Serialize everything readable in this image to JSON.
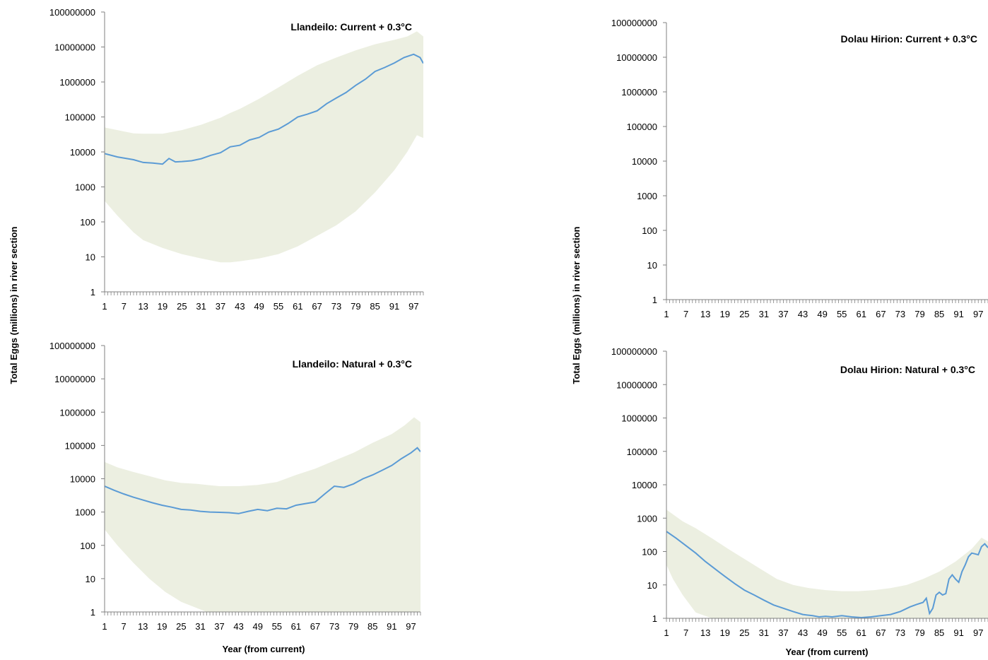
{
  "shared": {
    "ylabel": "Total Eggs (millions) in river section",
    "xlabel": "Year (from current)",
    "x_tick_labels": [
      "1",
      "7",
      "13",
      "19",
      "25",
      "31",
      "37",
      "43",
      "49",
      "55",
      "61",
      "67",
      "73",
      "79",
      "85",
      "91",
      "97"
    ],
    "y_tick_labels": [
      "1",
      "10",
      "100",
      "1000",
      "10000",
      "100000",
      "1000000",
      "10000000",
      "100000000"
    ],
    "colors": {
      "band": "#ECEFE1",
      "line": "#5B9BD5",
      "axis": "#808080"
    }
  },
  "chart_data": [
    {
      "type": "area",
      "title": "Llandeilo: Current + 0.3°C",
      "yscale": "log",
      "ylim": [
        1,
        100000000
      ],
      "xlim": [
        1,
        100
      ],
      "series": [
        {
          "kind": "band",
          "x": [
            1,
            5,
            10,
            13,
            19,
            25,
            31,
            37,
            40,
            43,
            49,
            55,
            61,
            67,
            73,
            79,
            85,
            91,
            95,
            98,
            100
          ],
          "lower": [
            400,
            150,
            50,
            30,
            18,
            12,
            9,
            7,
            7,
            7.5,
            9,
            12,
            20,
            40,
            80,
            200,
            700,
            3000,
            10000,
            30000,
            25000
          ],
          "upper": [
            50000,
            42000,
            34000,
            33000,
            33000,
            42000,
            60000,
            95000,
            130000,
            170000,
            330000,
            700000,
            1500000,
            3000000,
            5000000,
            8000000,
            12000000,
            16000000,
            20000000,
            28000000,
            20000000
          ]
        },
        {
          "kind": "line",
          "x": [
            1,
            5,
            10,
            13,
            16,
            19,
            21,
            23,
            25,
            28,
            31,
            34,
            37,
            40,
            43,
            46,
            49,
            52,
            55,
            58,
            61,
            64,
            67,
            70,
            73,
            76,
            79,
            82,
            85,
            88,
            91,
            94,
            97,
            99,
            100
          ],
          "y": [
            9000,
            7200,
            6000,
            5000,
            4800,
            4500,
            6500,
            5200,
            5300,
            5600,
            6400,
            8000,
            9500,
            14000,
            15500,
            22000,
            26000,
            37000,
            45000,
            65000,
            100000,
            120000,
            150000,
            240000,
            350000,
            500000,
            800000,
            1200000,
            2000000,
            2600000,
            3500000,
            5000000,
            6200000,
            5000000,
            3400000
          ]
        }
      ]
    },
    {
      "type": "area",
      "title": "Llandeilo: Natural + 0.3°C",
      "yscale": "log",
      "ylim": [
        1,
        100000000
      ],
      "xlim": [
        1,
        100
      ],
      "series": [
        {
          "kind": "band",
          "x": [
            1,
            5,
            10,
            15,
            20,
            25,
            30,
            33,
            37,
            43,
            49,
            55,
            61,
            67,
            73,
            79,
            85,
            91,
            95,
            98,
            100
          ],
          "lower": [
            300,
            100,
            30,
            10,
            4,
            2,
            1.3,
            0.8,
            0.4,
            0.15,
            0.06,
            0.03,
            0.015,
            0.008,
            0.004,
            0.002,
            0.001,
            0.0005,
            0.0003,
            0.0002,
            0.0002
          ],
          "upper": [
            32000,
            22000,
            16000,
            12000,
            9000,
            7500,
            7000,
            6500,
            6000,
            6000,
            6500,
            8000,
            13000,
            20000,
            35000,
            60000,
            120000,
            220000,
            400000,
            700000,
            500000
          ]
        },
        {
          "kind": "line",
          "x": [
            1,
            4,
            7,
            10,
            13,
            16,
            19,
            22,
            25,
            28,
            31,
            34,
            37,
            40,
            43,
            46,
            49,
            52,
            55,
            58,
            61,
            64,
            67,
            70,
            73,
            76,
            79,
            82,
            85,
            88,
            91,
            94,
            97,
            99,
            100
          ],
          "y": [
            6000,
            4500,
            3500,
            2800,
            2300,
            1900,
            1600,
            1400,
            1200,
            1150,
            1050,
            1000,
            980,
            960,
            900,
            1050,
            1200,
            1100,
            1300,
            1250,
            1600,
            1800,
            2000,
            3500,
            6000,
            5500,
            7000,
            10000,
            13000,
            18000,
            25000,
            40000,
            60000,
            85000,
            65000
          ]
        }
      ]
    },
    {
      "type": "area",
      "title": "Dolau Hirion: Current + 0.3°C",
      "yscale": "log",
      "ylim": [
        1,
        100000000
      ],
      "xlim": [
        1,
        100
      ],
      "series": []
    },
    {
      "type": "area",
      "title": "Dolau Hirion: Natural + 0.3°C",
      "yscale": "log",
      "ylim": [
        1,
        100000000
      ],
      "xlim": [
        1,
        100
      ],
      "series": [
        {
          "kind": "band",
          "x": [
            1,
            3,
            6,
            10,
            15,
            20,
            25,
            30,
            35,
            40,
            45,
            50,
            55,
            60,
            65,
            70,
            75,
            80,
            85,
            90,
            95,
            98,
            100
          ],
          "lower": [
            40,
            15,
            5,
            1.5,
            0.4,
            0.15,
            0.05,
            0.02,
            0.01,
            0.005,
            0.003,
            0.002,
            0.0015,
            0.001,
            0.001,
            0.001,
            0.001,
            0.001,
            0.001,
            0.001,
            0.001,
            0.001,
            0.001
          ],
          "upper": [
            1800,
            1300,
            800,
            500,
            250,
            120,
            60,
            30,
            15,
            10,
            8,
            7,
            6.5,
            6.5,
            7,
            8,
            10,
            15,
            25,
            50,
            120,
            260,
            200
          ]
        },
        {
          "kind": "line",
          "x": [
            1,
            4,
            7,
            10,
            13,
            16,
            19,
            22,
            25,
            28,
            31,
            34,
            37,
            40,
            43,
            46,
            48,
            50,
            52,
            55,
            58,
            61,
            64,
            67,
            70,
            73,
            76,
            78,
            80,
            81,
            82,
            83,
            84,
            85,
            86,
            87,
            88,
            89,
            90,
            91,
            92,
            93,
            94,
            95,
            96,
            97,
            98,
            99,
            100
          ],
          "y": [
            400,
            250,
            150,
            90,
            50,
            30,
            18,
            11,
            7,
            5,
            3.5,
            2.5,
            2,
            1.6,
            1.3,
            1.2,
            1.1,
            1.15,
            1.1,
            1.2,
            1.1,
            1.05,
            1.1,
            1.2,
            1.3,
            1.6,
            2.2,
            2.6,
            3,
            4,
            1.4,
            2,
            5,
            6,
            5,
            5.5,
            15,
            20,
            15,
            12,
            25,
            40,
            70,
            90,
            85,
            80,
            140,
            170,
            130
          ]
        }
      ]
    }
  ]
}
